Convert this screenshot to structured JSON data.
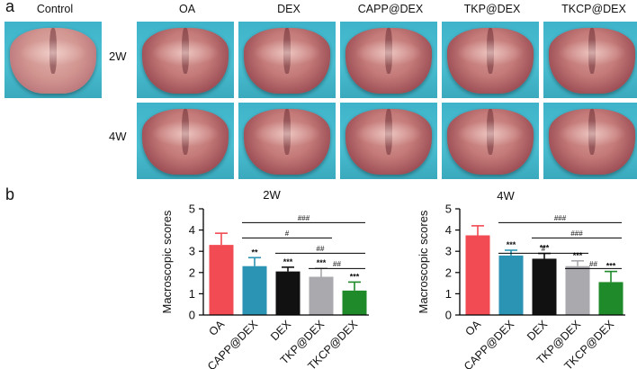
{
  "panels": {
    "a": "a",
    "b": "b"
  },
  "photo_grid": {
    "control_label": "Control",
    "columns": [
      "OA",
      "DEX",
      "CAPP@DEX",
      "TKP@DEX",
      "TKCP@DEX"
    ],
    "rows": [
      "2W",
      "4W"
    ]
  },
  "chart_data": [
    {
      "type": "bar",
      "title": "2W",
      "xlabel": "",
      "ylabel": "Macroscopic scores",
      "ylim": [
        0,
        5
      ],
      "yticks": [
        "0",
        "1",
        "2",
        "3",
        "4",
        "5"
      ],
      "categories": [
        "OA",
        "CAPP@DEX",
        "DEX",
        "TKP@DEX",
        "TKCP@DEX"
      ],
      "values": [
        3.3,
        2.3,
        2.05,
        1.8,
        1.15
      ],
      "errors": [
        0.55,
        0.4,
        0.2,
        0.4,
        0.4
      ],
      "colors": [
        "#f24b53",
        "#2b93b3",
        "#111111",
        "#a9a9ae",
        "#1f8a2a"
      ],
      "stars": [
        "",
        "**",
        "***",
        "***",
        "***"
      ],
      "comparisons": [
        {
          "from": 1,
          "to": 4,
          "label": "###"
        },
        {
          "from": 1,
          "to": 3,
          "label": "#"
        },
        {
          "from": 2,
          "to": 4,
          "label": "##"
        },
        {
          "from": 3,
          "to": 4,
          "label": "##"
        }
      ]
    },
    {
      "type": "bar",
      "title": "4W",
      "xlabel": "",
      "ylabel": "Macroscopic scores",
      "ylim": [
        0,
        5
      ],
      "yticks": [
        "0",
        "1",
        "2",
        "3",
        "4",
        "5"
      ],
      "categories": [
        "OA",
        "CAPP@DEX",
        "DEX",
        "TKP@DEX",
        "TKCP@DEX"
      ],
      "values": [
        3.75,
        2.8,
        2.65,
        2.3,
        1.55
      ],
      "errors": [
        0.45,
        0.25,
        0.25,
        0.25,
        0.5
      ],
      "colors": [
        "#f24b53",
        "#2b93b3",
        "#111111",
        "#a9a9ae",
        "#1f8a2a"
      ],
      "stars": [
        "",
        "***",
        "***",
        "***",
        "***"
      ],
      "comparisons": [
        {
          "from": 1,
          "to": 4,
          "label": "###"
        },
        {
          "from": 2,
          "to": 4,
          "label": "###"
        },
        {
          "from": 1,
          "to": 3,
          "label": "#"
        },
        {
          "from": 3,
          "to": 4,
          "label": "##"
        }
      ]
    }
  ]
}
